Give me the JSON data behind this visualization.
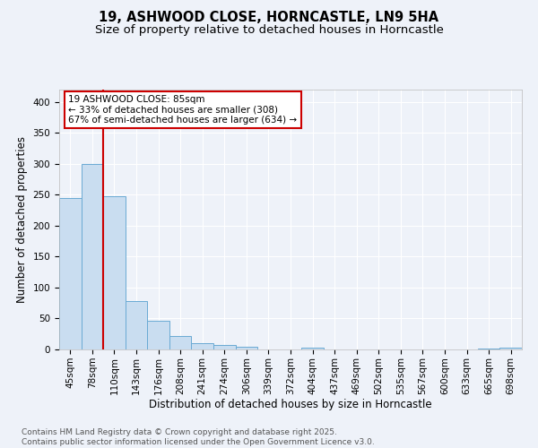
{
  "title": "19, ASHWOOD CLOSE, HORNCASTLE, LN9 5HA",
  "subtitle": "Size of property relative to detached houses in Horncastle",
  "xlabel": "Distribution of detached houses by size in Horncastle",
  "ylabel": "Number of detached properties",
  "categories": [
    "45sqm",
    "78sqm",
    "110sqm",
    "143sqm",
    "176sqm",
    "208sqm",
    "241sqm",
    "274sqm",
    "306sqm",
    "339sqm",
    "372sqm",
    "404sqm",
    "437sqm",
    "469sqm",
    "502sqm",
    "535sqm",
    "567sqm",
    "600sqm",
    "633sqm",
    "665sqm",
    "698sqm"
  ],
  "values": [
    245,
    300,
    248,
    78,
    46,
    22,
    10,
    7,
    4,
    0,
    0,
    3,
    0,
    0,
    0,
    0,
    0,
    0,
    0,
    2,
    3
  ],
  "bar_color": "#c9ddf0",
  "bar_edge_color": "#6aaad4",
  "vline_color": "#cc0000",
  "annotation_text": "19 ASHWOOD CLOSE: 85sqm\n← 33% of detached houses are smaller (308)\n67% of semi-detached houses are larger (634) →",
  "annotation_box_edgecolor": "#cc0000",
  "footnote": "Contains HM Land Registry data © Crown copyright and database right 2025.\nContains public sector information licensed under the Open Government Licence v3.0.",
  "ylim": [
    0,
    420
  ],
  "yticks": [
    0,
    50,
    100,
    150,
    200,
    250,
    300,
    350,
    400
  ],
  "background_color": "#eef2f9",
  "grid_color": "#ffffff",
  "title_fontsize": 10.5,
  "subtitle_fontsize": 9.5,
  "axis_fontsize": 8.5,
  "tick_fontsize": 7.5,
  "annotation_fontsize": 7.5,
  "footnote_fontsize": 6.5
}
